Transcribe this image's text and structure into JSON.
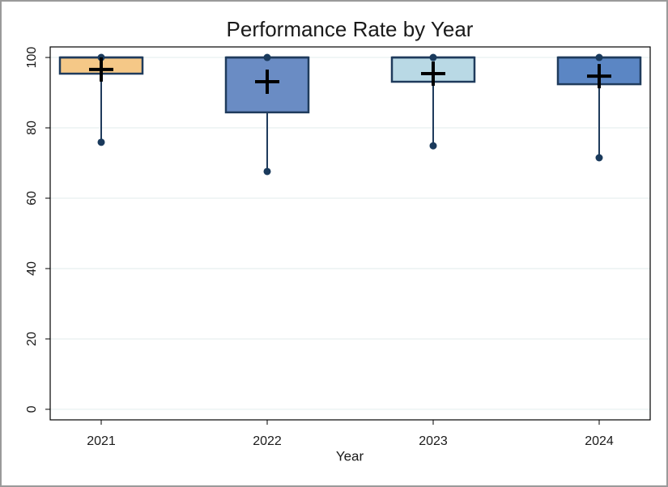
{
  "chart_data": {
    "type": "box",
    "title": "Performance Rate by Year",
    "x_label": "Year",
    "ylim": [
      -3,
      103
    ],
    "yticks": [
      0,
      20,
      40,
      60,
      80,
      100
    ],
    "grid": true,
    "boxes": [
      {
        "category": "2021",
        "color": "#f5c887",
        "whisker_low": 75.9,
        "q1": 95.4,
        "median": 100,
        "q3": 100,
        "whisker_high": 100,
        "mean": 96.6
      },
      {
        "category": "2022",
        "color": "#6a8cc4",
        "whisker_low": 67.6,
        "q1": 84.4,
        "median": 100,
        "q3": 100,
        "whisker_high": 100,
        "mean": 93.1
      },
      {
        "category": "2023",
        "color": "#b9d9e5",
        "whisker_low": 74.9,
        "q1": 93.1,
        "median": 100,
        "q3": 100,
        "whisker_high": 100,
        "mean": 95.4
      },
      {
        "category": "2024",
        "color": "#5b86c4",
        "whisker_low": 71.5,
        "q1": 92.4,
        "median": 100,
        "q3": 100,
        "whisker_high": 100,
        "mean": 94.7
      }
    ]
  }
}
